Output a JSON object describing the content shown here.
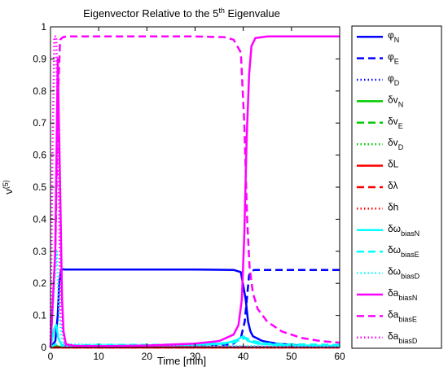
{
  "chart_data": {
    "type": "line",
    "title": "Eigenvector Relative to the 5",
    "title_sup": "th",
    "title_tail": " Eigenvalue",
    "xlabel": "Time [min]",
    "ylabel": "ν",
    "ylabel_sup": "(5)",
    "xlim": [
      0,
      60
    ],
    "ylim": [
      0,
      1
    ],
    "xticks": [
      "0",
      "10",
      "20",
      "30",
      "40",
      "50",
      "60"
    ],
    "yticks": [
      "0",
      "0.1",
      "0.2",
      "0.3",
      "0.4",
      "0.5",
      "0.6",
      "0.7",
      "0.8",
      "0.9",
      "1"
    ],
    "grid": false,
    "legend_position": "outside-right",
    "series": [
      {
        "name": "φ",
        "sub": "N",
        "color": "#0000ff",
        "dash": "solid",
        "x": [
          0,
          1,
          1.5,
          1.8,
          2.2,
          2.7,
          3,
          10,
          20,
          30,
          38,
          39.5,
          40.5,
          41,
          41.5,
          42,
          44,
          47,
          50,
          55,
          60
        ],
        "y": [
          0,
          0.02,
          0.1,
          0.2,
          0.242,
          0.244,
          0.243,
          0.243,
          0.243,
          0.243,
          0.242,
          0.235,
          0.15,
          0.08,
          0.05,
          0.035,
          0.02,
          0.012,
          0.008,
          0.004,
          0.003
        ]
      },
      {
        "name": "φ",
        "sub": "E",
        "color": "#0000ff",
        "dash": "dashed",
        "x": [
          0,
          1.5,
          2.5,
          10,
          20,
          30,
          35,
          38,
          39.5,
          40.3,
          40.8,
          41.2,
          41.8,
          42.5,
          45,
          60
        ],
        "y": [
          0,
          0.005,
          0.003,
          0.002,
          0.002,
          0.003,
          0.005,
          0.012,
          0.03,
          0.08,
          0.16,
          0.225,
          0.24,
          0.242,
          0.242,
          0.242
        ]
      },
      {
        "name": "φ",
        "sub": "D",
        "color": "#0000ff",
        "dash": "dotted",
        "x": [
          0,
          60
        ],
        "y": [
          0,
          0
        ]
      },
      {
        "name": "δv",
        "sub": "N",
        "color": "#00cc00",
        "dash": "solid",
        "x": [
          0,
          1,
          2,
          10,
          30,
          50,
          60
        ],
        "y": [
          0,
          0.004,
          0.002,
          0.002,
          0.002,
          0.001,
          0.001
        ]
      },
      {
        "name": "δv",
        "sub": "E",
        "color": "#00cc00",
        "dash": "dashed",
        "x": [
          0,
          1,
          2,
          10,
          30,
          50,
          60
        ],
        "y": [
          0,
          0.003,
          0.002,
          0.001,
          0.001,
          0.001,
          0.001
        ]
      },
      {
        "name": "δv",
        "sub": "D",
        "color": "#00cc00",
        "dash": "dotted",
        "x": [
          0,
          60
        ],
        "y": [
          0,
          0
        ]
      },
      {
        "name": "δL",
        "sub": "",
        "color": "#ff0000",
        "dash": "solid",
        "x": [
          0,
          60
        ],
        "y": [
          0,
          0
        ]
      },
      {
        "name": "δλ",
        "sub": "",
        "color": "#ff0000",
        "dash": "dashed",
        "x": [
          0,
          60
        ],
        "y": [
          0,
          0
        ]
      },
      {
        "name": "δh",
        "sub": "",
        "color": "#ff0000",
        "dash": "dotted",
        "x": [
          0,
          60
        ],
        "y": [
          0,
          0
        ]
      },
      {
        "name": "δω",
        "sub": "biasN",
        "color": "#00ffff",
        "dash": "solid",
        "x": [
          0,
          0.8,
          1.2,
          1.6,
          2.2,
          3,
          10,
          20,
          30,
          36,
          38.5,
          40,
          41,
          43,
          47,
          52,
          60
        ],
        "y": [
          0,
          0.06,
          0.07,
          0.03,
          0.01,
          0.005,
          0.005,
          0.006,
          0.008,
          0.012,
          0.022,
          0.035,
          0.02,
          0.012,
          0.008,
          0.006,
          0.005
        ]
      },
      {
        "name": "δω",
        "sub": "biasE",
        "color": "#00ffff",
        "dash": "dashed",
        "x": [
          0,
          1,
          2,
          10,
          20,
          30,
          38,
          40.5,
          42,
          45,
          50,
          60
        ],
        "y": [
          0,
          0.01,
          0.005,
          0.008,
          0.008,
          0.01,
          0.015,
          0.03,
          0.02,
          0.012,
          0.01,
          0.008
        ]
      },
      {
        "name": "δω",
        "sub": "biasD",
        "color": "#00ffff",
        "dash": "dotted",
        "x": [
          0,
          0.8,
          1.3,
          1.8,
          2.5,
          60
        ],
        "y": [
          0,
          0.2,
          0.3,
          0.1,
          0.01,
          0.002
        ]
      },
      {
        "name": "δa",
        "sub": "biasN",
        "color": "#ff00ff",
        "dash": "solid",
        "x": [
          0,
          1,
          1.5,
          2,
          2.4,
          2.7,
          3.2,
          5,
          10,
          20,
          30,
          35,
          38,
          39,
          39.7,
          40.2,
          40.7,
          41.2,
          41.7,
          42.5,
          45,
          60
        ],
        "y": [
          0,
          0.3,
          0.9,
          0.5,
          0.15,
          0.05,
          0.01,
          0.005,
          0.004,
          0.006,
          0.012,
          0.02,
          0.04,
          0.07,
          0.15,
          0.35,
          0.65,
          0.85,
          0.94,
          0.965,
          0.97,
          0.97
        ]
      },
      {
        "name": "δa",
        "sub": "biasE",
        "color": "#ff00ff",
        "dash": "dashed",
        "x": [
          0,
          1,
          1.6,
          2,
          2.6,
          3.5,
          10,
          20,
          30,
          36,
          38,
          39.5,
          40.2,
          40.8,
          41.3,
          42,
          43,
          45,
          48,
          52,
          56,
          60
        ],
        "y": [
          0,
          0.3,
          0.8,
          0.96,
          0.968,
          0.97,
          0.97,
          0.97,
          0.97,
          0.968,
          0.96,
          0.92,
          0.7,
          0.4,
          0.25,
          0.17,
          0.12,
          0.08,
          0.05,
          0.03,
          0.02,
          0.015
        ]
      },
      {
        "name": "δa",
        "sub": "biasD",
        "color": "#ff00ff",
        "dash": "dotted",
        "x": [
          0,
          0.4,
          0.8,
          1.2,
          1.6,
          2.1,
          3,
          60
        ],
        "y": [
          0,
          0.6,
          0.97,
          0.97,
          0.6,
          0.1,
          0.005,
          0.001
        ]
      }
    ]
  }
}
